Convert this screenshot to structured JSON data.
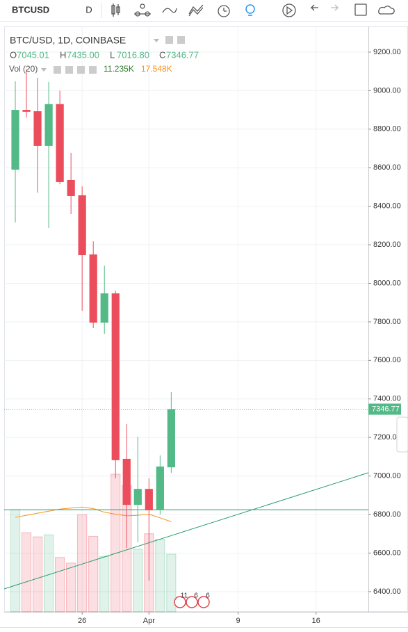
{
  "toolbar": {
    "symbol": "BTCUSD",
    "interval": "D"
  },
  "chart_data": {
    "type": "candlestick",
    "title": "BTC/USD, 1D, COINBASE",
    "ohlc_legend": [
      {
        "key": "O",
        "value": "7045.01"
      },
      {
        "key": "H",
        "value": "7435.00"
      },
      {
        "key": "L",
        "value": "7016.80"
      },
      {
        "key": "C",
        "value": "7346.77"
      }
    ],
    "x": [
      0,
      1,
      2,
      3,
      4,
      5,
      6,
      7,
      8,
      9,
      10,
      11,
      12,
      13,
      14
    ],
    "open": [
      8590,
      8900,
      8893,
      8713,
      8930,
      8536,
      8457,
      8150,
      7796,
      7948,
      7089,
      6850,
      6933,
      6822,
      7045.01
    ],
    "high": [
      9048,
      9110,
      9066,
      9045,
      9000,
      8677,
      8503,
      8218,
      8092,
      7962,
      7269,
      7204,
      6988,
      7107,
      7435
    ],
    "low": [
      8316,
      8860,
      8471,
      8287,
      8514,
      8359,
      7858,
      7767,
      7738,
      6988,
      6627,
      6656,
      6457,
      6800,
      7016.8
    ],
    "close": [
      8900,
      8890,
      8713,
      8930,
      8525,
      8453,
      8146,
      7796,
      7948,
      7082,
      6850,
      6933,
      6822,
      7049,
      7346.77
    ],
    "up_color": "#53b987",
    "down_color": "#eb4d5c",
    "xlim": [
      -1,
      31.7
    ],
    "xticks": [
      {
        "value": 6,
        "label": "26"
      },
      {
        "value": 12,
        "label": "Apr"
      },
      {
        "value": 20,
        "label": "9"
      },
      {
        "value": 27,
        "label": "16"
      }
    ],
    "ylim": [
      6295,
      9326
    ],
    "yticks": [
      {
        "value": 6400,
        "label": "6400.00"
      },
      {
        "value": 6600,
        "label": "6600.00"
      },
      {
        "value": 6800,
        "label": "6800.00"
      },
      {
        "value": 7000,
        "label": "7000.00"
      },
      {
        "value": 7200,
        "label": "7200.00"
      },
      {
        "value": 7400,
        "label": "7400.00"
      },
      {
        "value": 7600,
        "label": "7600.00"
      },
      {
        "value": 7800,
        "label": "7800.00"
      },
      {
        "value": 8000,
        "label": "8000.00"
      },
      {
        "value": 8200,
        "label": "8200.00"
      },
      {
        "value": 8400,
        "label": "8400.00"
      },
      {
        "value": 8600,
        "label": "8600.00"
      },
      {
        "value": 8800,
        "label": "8800.00"
      },
      {
        "value": 9000,
        "label": "9000.00"
      },
      {
        "value": 9200,
        "label": "9200.00"
      }
    ],
    "grid": true,
    "volume": {
      "title": "Vol (20)",
      "values": [
        19.9,
        15.4,
        14.6,
        15.0,
        10.6,
        9.5,
        18.9,
        14.7,
        10.8,
        26.8,
        24.6,
        12.2,
        15.2,
        14.1,
        11.235
      ],
      "ma_values": [
        18.4,
        18.8,
        19.2,
        19.6,
        20.0,
        20.2,
        20.4,
        20.1,
        19.4,
        19.0,
        18.7,
        18.8,
        19.0,
        18.3,
        17.548
      ],
      "value_label": "11.235K",
      "ma_label": "17.548K",
      "ylim": [
        0,
        113.7
      ],
      "ma_color": "#f7931a"
    },
    "trendlines": [
      {
        "x": [
          -1,
          31.7
        ],
        "y": [
          6414,
          7017
        ],
        "color": "#2a9d6f"
      },
      {
        "x": [
          -1,
          31.7
        ],
        "y": [
          6825,
          6825
        ],
        "color": "#2a9d6f"
      }
    ],
    "events": [
      "11",
      "6",
      "6"
    ]
  }
}
